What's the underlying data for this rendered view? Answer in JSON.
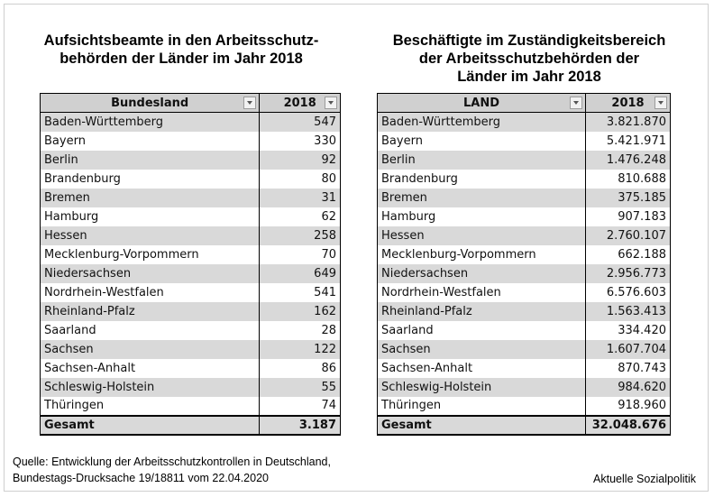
{
  "left": {
    "title_line1": "Aufsichtsbeamte in den Arbeitsschutz-",
    "title_line2": "behörden der Länder im Jahr 2018",
    "header_name": "Bundesland",
    "header_year": "2018",
    "rows": [
      {
        "name": "Baden-Württemberg",
        "value": "547"
      },
      {
        "name": "Bayern",
        "value": "330"
      },
      {
        "name": "Berlin",
        "value": "92"
      },
      {
        "name": "Brandenburg",
        "value": "80"
      },
      {
        "name": "Bremen",
        "value": "31"
      },
      {
        "name": "Hamburg",
        "value": "62"
      },
      {
        "name": "Hessen",
        "value": "258"
      },
      {
        "name": "Mecklenburg-Vorpommern",
        "value": "70"
      },
      {
        "name": "Niedersachsen",
        "value": "649"
      },
      {
        "name": "Nordrhein-Westfalen",
        "value": "541"
      },
      {
        "name": "Rheinland-Pfalz",
        "value": "162"
      },
      {
        "name": "Saarland",
        "value": "28"
      },
      {
        "name": "Sachsen",
        "value": "122"
      },
      {
        "name": "Sachsen-Anhalt",
        "value": "86"
      },
      {
        "name": "Schleswig-Holstein",
        "value": "55"
      },
      {
        "name": "Thüringen",
        "value": "74"
      }
    ],
    "total_label": "Gesamt",
    "total_value": "3.187"
  },
  "right": {
    "title_line1": "Beschäftigte im Zuständigkeitsbereich",
    "title_line2": "der Arbeitsschutzbehörden der",
    "title_line3": "Länder im Jahr 2018",
    "header_name": "LAND",
    "header_year": "2018",
    "rows": [
      {
        "name": "Baden-Württemberg",
        "value": "3.821.870"
      },
      {
        "name": "Bayern",
        "value": "5.421.971"
      },
      {
        "name": "Berlin",
        "value": "1.476.248"
      },
      {
        "name": "Brandenburg",
        "value": "810.688"
      },
      {
        "name": "Bremen",
        "value": "375.185"
      },
      {
        "name": "Hamburg",
        "value": "907.183"
      },
      {
        "name": "Hessen",
        "value": "2.760.107"
      },
      {
        "name": "Mecklenburg-Vorpommern",
        "value": "662.188"
      },
      {
        "name": "Niedersachsen",
        "value": "2.956.773"
      },
      {
        "name": "Nordrhein-Westfalen",
        "value": "6.576.603"
      },
      {
        "name": "Rheinland-Pfalz",
        "value": "1.563.413"
      },
      {
        "name": "Saarland",
        "value": "334.420"
      },
      {
        "name": "Sachsen",
        "value": "1.607.704"
      },
      {
        "name": "Sachsen-Anhalt",
        "value": "870.743"
      },
      {
        "name": "Schleswig-Holstein",
        "value": "984.620"
      },
      {
        "name": "Thüringen",
        "value": "918.960"
      }
    ],
    "total_label": "Gesamt",
    "total_value": "32.048.676"
  },
  "source_line1": "Quelle: Entwicklung der Arbeitsschutzkontrollen in Deutschland,",
  "source_line2": "Bundestags-Drucksache 19/18811 vom 22.04.2020",
  "brand": "Aktuelle Sozialpolitik",
  "colors": {
    "header_bg": "#d0d0d0",
    "row_band": "#d9d9d9"
  },
  "icons": [
    "filter-dropdown-icon"
  ]
}
